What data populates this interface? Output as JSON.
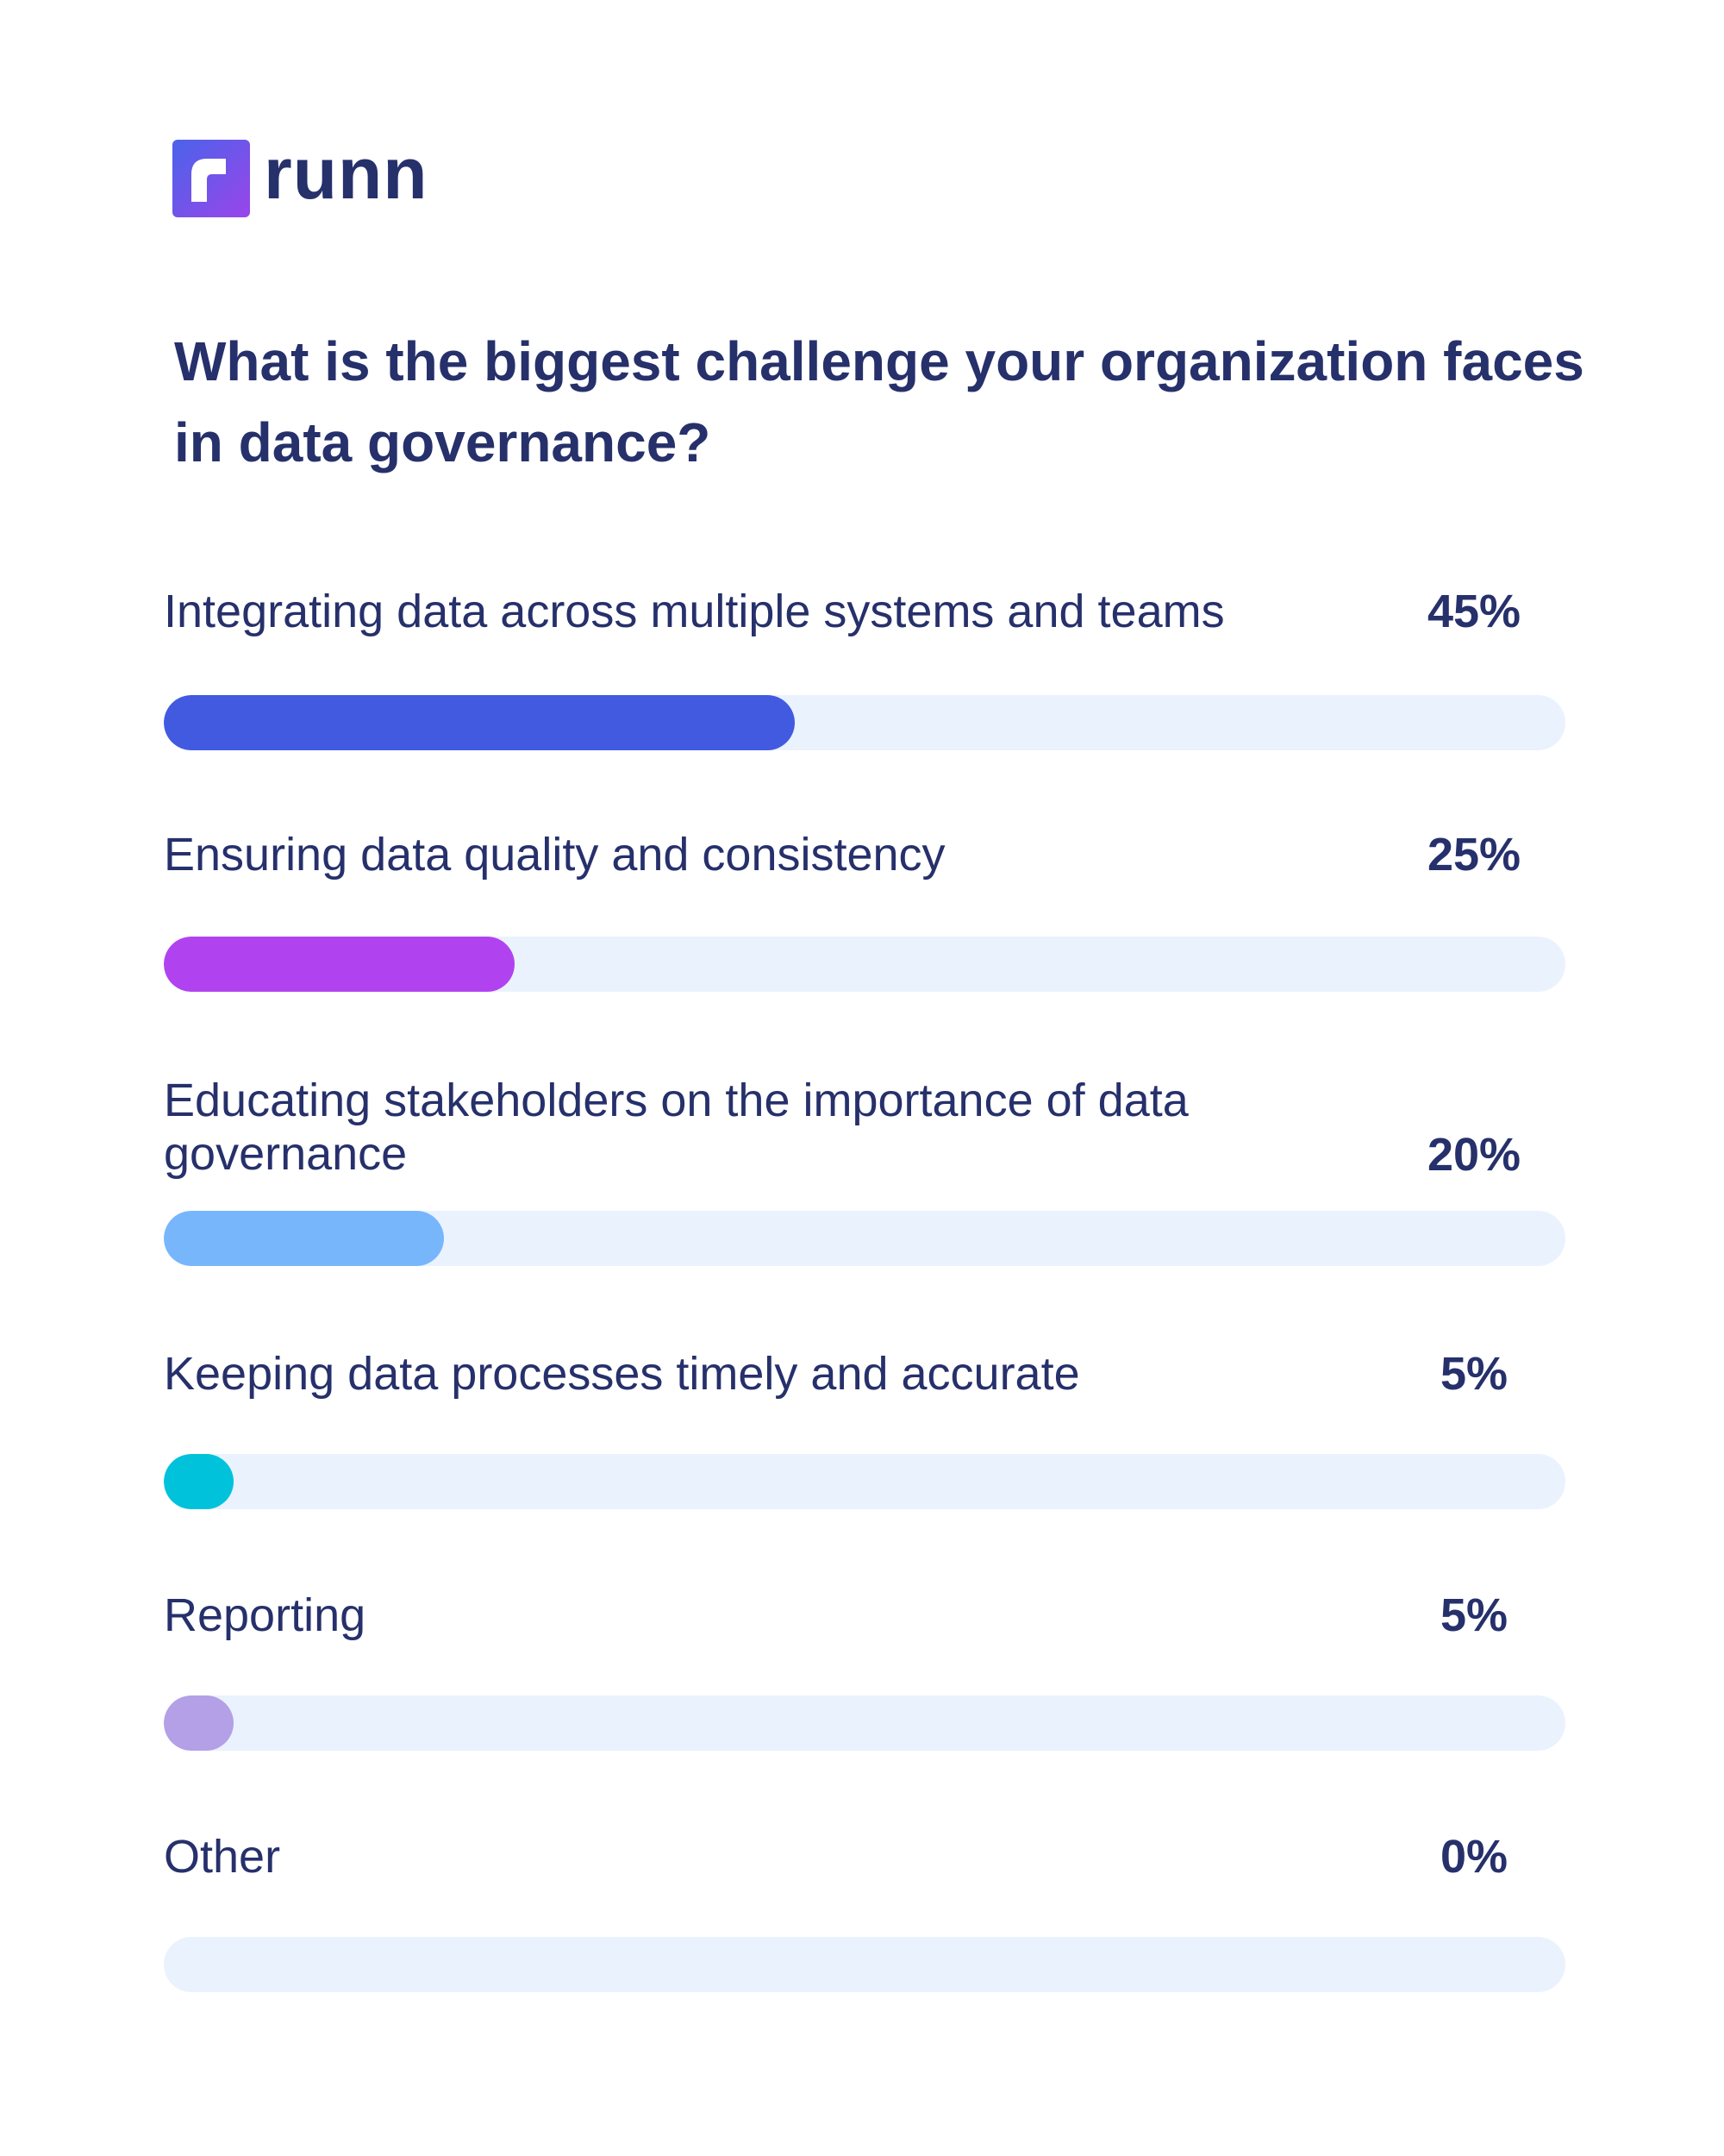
{
  "brand": {
    "name": "runn",
    "colors": {
      "gradient_start": "#4a63ea",
      "gradient_end": "#9a45ea"
    }
  },
  "chart_data": {
    "type": "bar",
    "orientation": "horizontal",
    "title": "What is the biggest challenge your organization faces in data governance?",
    "categories": [
      "Integrating data across multiple systems and teams",
      "Ensuring data quality and consistency",
      "Educating stakeholders on the importance of data governance",
      "Keeping data processes timely and accurate",
      "Reporting",
      "Other"
    ],
    "values": [
      45,
      25,
      20,
      5,
      5,
      0
    ],
    "value_labels": [
      "45%",
      "25%",
      "20%",
      "5%",
      "5%",
      "0%"
    ],
    "colors": [
      "#415ae0",
      "#b043ef",
      "#78b6fc",
      "#00c2da",
      "#b3a0e6",
      "#b3a0e6"
    ],
    "track_color": "#eaf2fe",
    "xlim": [
      0,
      100
    ],
    "legend": "none",
    "grid": false
  }
}
